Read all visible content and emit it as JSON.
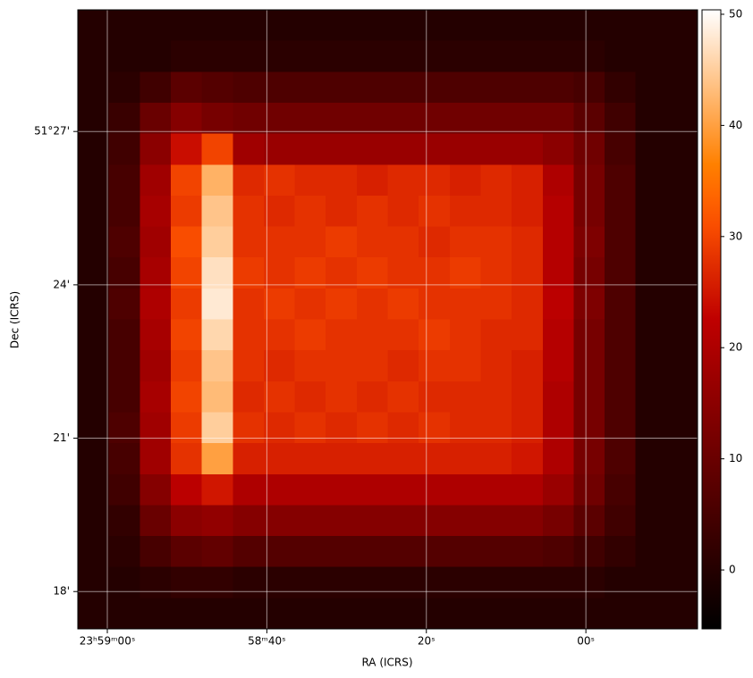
{
  "chart_data": {
    "type": "heatmap",
    "xlabel": "RA (ICRS)",
    "ylabel": "Dec (ICRS)",
    "colormap": "gist_heat",
    "xlim": [
      86343.7,
      86266.0
    ],
    "xticks": [
      {
        "value": 86340,
        "label": "23ʰ59ᵐ00ˢ"
      },
      {
        "value": 86320,
        "label": "58ᵐ40ˢ"
      },
      {
        "value": 86300,
        "label": "20ˢ"
      },
      {
        "value": 86280,
        "label": "00ˢ"
      }
    ],
    "ylim": [
      17.27,
      29.38
    ],
    "yticks": [
      {
        "value": 27,
        "label": "51°27'"
      },
      {
        "value": 24,
        "label": "24'"
      },
      {
        "value": 21,
        "label": "21'"
      },
      {
        "value": 18,
        "label": "18'"
      }
    ],
    "clim": [
      -5.3,
      50.4
    ],
    "cticks": [
      0,
      10,
      20,
      30,
      40,
      50
    ],
    "grid": true,
    "values": [
      [
        0,
        0,
        0,
        0,
        0,
        0,
        0,
        0,
        0,
        0,
        0,
        0,
        0,
        0,
        0,
        0,
        0,
        0,
        0,
        0
      ],
      [
        0,
        0,
        0,
        1,
        1,
        1,
        1,
        1,
        1,
        1,
        1,
        1,
        1,
        1,
        1,
        1,
        1,
        0,
        0,
        0
      ],
      [
        0,
        1,
        4,
        8,
        7,
        6,
        6,
        6,
        6,
        6,
        6,
        6,
        6,
        6,
        6,
        6,
        5,
        2,
        0,
        0
      ],
      [
        0,
        3,
        10,
        14,
        12,
        11,
        11,
        11,
        11,
        11,
        11,
        11,
        11,
        11,
        11,
        11,
        8,
        4,
        0,
        0
      ],
      [
        0,
        4,
        15,
        24,
        30,
        18,
        17,
        17,
        17,
        17,
        17,
        17,
        17,
        17,
        17,
        15,
        11,
        5,
        0,
        0
      ],
      [
        0,
        5,
        18,
        30,
        42,
        27,
        28,
        27,
        27,
        26,
        27,
        27,
        26,
        27,
        26,
        20,
        12,
        6,
        0,
        0
      ],
      [
        0,
        5,
        19,
        29,
        44,
        28,
        27,
        28,
        27,
        28,
        27,
        28,
        27,
        27,
        26,
        21,
        12,
        6,
        0,
        0
      ],
      [
        0,
        6,
        18,
        31,
        45,
        28,
        28,
        28,
        29,
        28,
        28,
        27,
        28,
        28,
        27,
        21,
        13,
        6,
        0,
        0
      ],
      [
        0,
        5,
        19,
        30,
        47,
        29,
        28,
        29,
        28,
        29,
        28,
        28,
        29,
        28,
        27,
        21,
        12,
        6,
        0,
        0
      ],
      [
        0,
        6,
        20,
        29,
        48,
        28,
        29,
        28,
        29,
        28,
        29,
        28,
        28,
        28,
        27,
        22,
        13,
        6,
        0,
        0
      ],
      [
        0,
        5,
        19,
        30,
        46,
        28,
        28,
        29,
        28,
        28,
        28,
        29,
        28,
        27,
        27,
        21,
        12,
        6,
        0,
        0
      ],
      [
        0,
        5,
        18,
        29,
        44,
        28,
        27,
        28,
        28,
        28,
        27,
        28,
        28,
        27,
        26,
        21,
        12,
        6,
        0,
        0
      ],
      [
        0,
        5,
        19,
        30,
        43,
        27,
        28,
        27,
        28,
        27,
        28,
        27,
        27,
        27,
        26,
        20,
        12,
        6,
        0,
        0
      ],
      [
        0,
        6,
        18,
        29,
        45,
        28,
        27,
        28,
        27,
        28,
        27,
        28,
        27,
        27,
        26,
        20,
        12,
        6,
        0,
        0
      ],
      [
        0,
        5,
        18,
        28,
        40,
        26,
        26,
        26,
        26,
        26,
        26,
        26,
        26,
        26,
        25,
        20,
        12,
        6,
        0,
        0
      ],
      [
        0,
        4,
        14,
        22,
        25,
        20,
        20,
        20,
        20,
        20,
        20,
        20,
        20,
        20,
        20,
        17,
        11,
        5,
        0,
        0
      ],
      [
        0,
        2,
        10,
        15,
        16,
        14,
        14,
        14,
        14,
        14,
        14,
        14,
        14,
        14,
        14,
        12,
        8,
        4,
        0,
        0
      ],
      [
        0,
        1,
        5,
        8,
        9,
        7,
        7,
        7,
        7,
        7,
        7,
        7,
        7,
        7,
        7,
        6,
        4,
        2,
        0,
        0
      ],
      [
        0,
        0,
        1,
        2,
        2,
        1,
        1,
        1,
        1,
        1,
        1,
        1,
        1,
        1,
        1,
        1,
        1,
        0,
        0,
        0
      ],
      [
        0,
        0,
        0,
        0,
        0,
        0,
        0,
        0,
        0,
        0,
        0,
        0,
        0,
        0,
        0,
        0,
        0,
        0,
        0,
        0
      ]
    ]
  }
}
